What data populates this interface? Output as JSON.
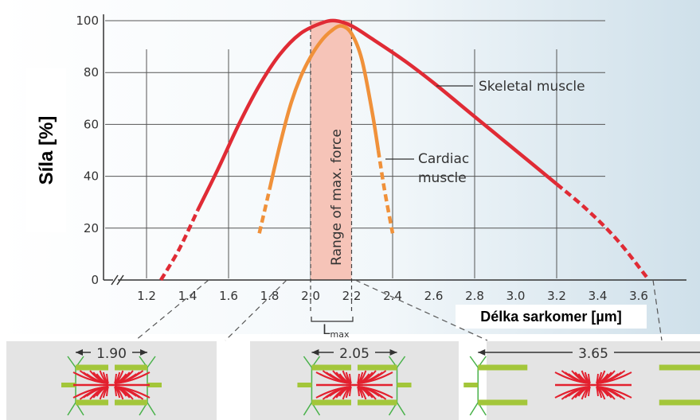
{
  "chart_data": {
    "type": "line",
    "xlabel": "Délka sarkomer [µm]",
    "ylabel": "Síla [%]",
    "xlim": [
      1.05,
      3.75
    ],
    "ylim": [
      0,
      100
    ],
    "x_ticks": [
      "1.2",
      "1.4",
      "1.6",
      "1.8",
      "2.0",
      "2.2",
      "2.4",
      "2.6",
      "2.8",
      "3.0",
      "3.2",
      "3.4",
      "3.6"
    ],
    "y_ticks": [
      "0",
      "20",
      "40",
      "60",
      "80",
      "100"
    ],
    "series": [
      {
        "name": "Skeletal muscle",
        "color": "#e02b35",
        "x": [
          1.27,
          1.36,
          1.45,
          1.55,
          1.65,
          1.75,
          1.85,
          1.95,
          2.05,
          2.12,
          2.2,
          2.3,
          2.45,
          2.6,
          2.8,
          3.0,
          3.2,
          3.35,
          3.5,
          3.65
        ],
        "y": [
          0,
          12,
          27,
          43,
          60,
          75,
          87,
          95,
          99,
          100,
          98,
          93,
          85,
          76,
          63,
          50,
          37,
          27,
          15,
          0
        ],
        "dashed_from_start": 2,
        "dashed_from_end": 3
      },
      {
        "name": "Cardiac muscle",
        "color": "#f0913a",
        "x": [
          1.75,
          1.8,
          1.85,
          1.9,
          1.95,
          2.0,
          2.05,
          2.1,
          2.15,
          2.2,
          2.25,
          2.3,
          2.33,
          2.36,
          2.4
        ],
        "y": [
          18,
          35,
          52,
          67,
          78,
          86,
          92,
          96,
          98,
          95,
          85,
          65,
          50,
          35,
          18
        ],
        "dashed_from_start": 1,
        "dashed_from_end": 2
      }
    ],
    "band": {
      "x_from": 2.0,
      "x_to": 2.2,
      "label": "Range of max. force",
      "color": "#f6c4b8"
    },
    "lmax_label": "L",
    "lmax_sub": "max",
    "annotations": {
      "skeletal_label": "Skeletal muscle",
      "cardiac_label_1": "Cardiac",
      "cardiac_label_2": "muscle"
    },
    "sarcomere_diagrams": [
      {
        "label": "1.90",
        "value": 1.9
      },
      {
        "label": "2.05",
        "value": 2.05
      },
      {
        "label": "3.65",
        "value": 3.65
      }
    ]
  }
}
